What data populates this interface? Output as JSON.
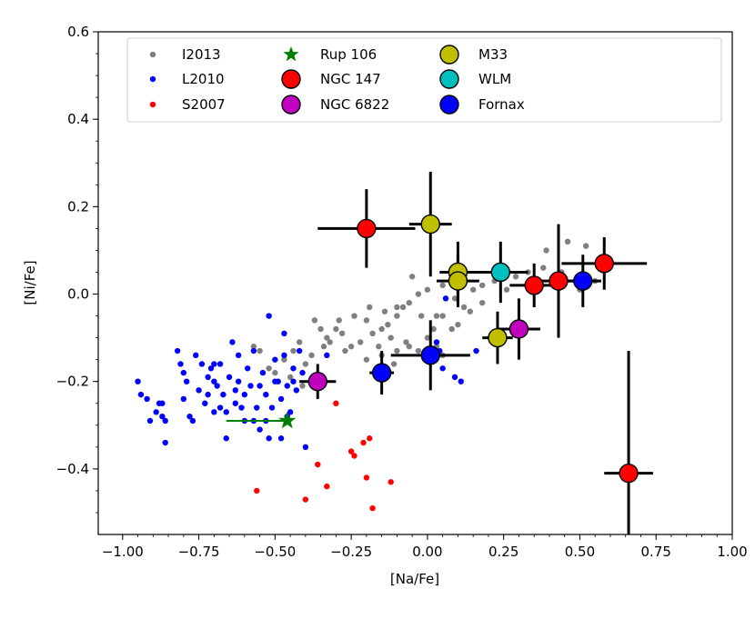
{
  "chart_data": {
    "type": "scatter",
    "title": "",
    "xlabel": "[Na/Fe]",
    "ylabel": "[Ni/Fe]",
    "xlim": [
      -1.08,
      1.0
    ],
    "ylim": [
      -0.55,
      0.6
    ],
    "xticks": [
      -1.0,
      -0.75,
      -0.5,
      -0.25,
      0.0,
      0.25,
      0.5,
      0.75,
      1.0
    ],
    "xtick_labels": [
      "−1.00",
      "−0.75",
      "−0.50",
      "−0.25",
      "0.00",
      "0.25",
      "0.50",
      "0.75",
      "1.00"
    ],
    "yticks": [
      -0.4,
      -0.2,
      0.0,
      0.2,
      0.4,
      0.6
    ],
    "ytick_labels": [
      "−0.4",
      "−0.2",
      "0.0",
      "0.2",
      "0.4",
      "0.6"
    ],
    "legend_position": "top",
    "legend": [
      {
        "label": "I2013",
        "marker": "dot",
        "color": "#808080"
      },
      {
        "label": "L2010",
        "marker": "dot",
        "color": "#0000ff"
      },
      {
        "label": "S2007",
        "marker": "dot",
        "color": "#ff0000"
      },
      {
        "label": "Rup 106",
        "marker": "star",
        "color": "#008000"
      },
      {
        "label": "NGC 147",
        "marker": "circle",
        "color": "#ff0000"
      },
      {
        "label": "NGC 6822",
        "marker": "circle",
        "color": "#bf00bf"
      },
      {
        "label": "M33",
        "marker": "circle",
        "color": "#bfbf00"
      },
      {
        "label": "WLM",
        "marker": "circle",
        "color": "#00bfbf"
      },
      {
        "label": "Fornax",
        "marker": "circle",
        "color": "#0000ff"
      }
    ],
    "series": [
      {
        "name": "I2013",
        "marker": "dot",
        "color": "#808080",
        "points": [
          [
            -0.2,
            -0.06
          ],
          [
            -0.15,
            -0.08
          ],
          [
            -0.1,
            -0.05
          ],
          [
            -0.05,
            0.04
          ],
          [
            -0.08,
            -0.03
          ],
          [
            -0.13,
            -0.07
          ],
          [
            -0.18,
            -0.09
          ],
          [
            -0.22,
            -0.11
          ],
          [
            -0.25,
            -0.12
          ],
          [
            -0.28,
            -0.09
          ],
          [
            -0.3,
            -0.08
          ],
          [
            -0.32,
            -0.11
          ],
          [
            -0.34,
            -0.12
          ],
          [
            -0.37,
            -0.06
          ],
          [
            -0.38,
            -0.14
          ],
          [
            -0.42,
            -0.11
          ],
          [
            -0.4,
            -0.16
          ],
          [
            -0.44,
            -0.13
          ],
          [
            -0.47,
            -0.15
          ],
          [
            -0.5,
            -0.18
          ],
          [
            -0.52,
            -0.17
          ],
          [
            -0.55,
            -0.13
          ],
          [
            -0.57,
            -0.12
          ],
          [
            -0.35,
            -0.08
          ],
          [
            -0.27,
            -0.13
          ],
          [
            -0.16,
            -0.12
          ],
          [
            -0.12,
            -0.1
          ],
          [
            -0.1,
            -0.13
          ],
          [
            -0.06,
            -0.12
          ],
          [
            -0.03,
            -0.13
          ],
          [
            0.0,
            -0.1
          ],
          [
            0.02,
            -0.08
          ],
          [
            0.05,
            -0.05
          ],
          [
            0.08,
            -0.08
          ],
          [
            0.12,
            -0.03
          ],
          [
            0.15,
            0.01
          ],
          [
            0.18,
            0.02
          ],
          [
            0.22,
            0.03
          ],
          [
            0.26,
            0.01
          ],
          [
            0.29,
            0.04
          ],
          [
            0.33,
            0.05
          ],
          [
            0.38,
            0.06
          ],
          [
            0.44,
            0.05
          ],
          [
            0.5,
            0.01
          ],
          [
            0.55,
            0.03
          ],
          [
            0.09,
            -0.01
          ],
          [
            0.05,
            0.02
          ],
          [
            0.0,
            0.01
          ],
          [
            -0.03,
            0.0
          ],
          [
            -0.06,
            -0.02
          ],
          [
            -0.1,
            -0.03
          ],
          [
            -0.14,
            -0.04
          ],
          [
            -0.19,
            -0.03
          ],
          [
            -0.24,
            -0.05
          ],
          [
            -0.29,
            -0.06
          ],
          [
            -0.33,
            -0.1
          ],
          [
            0.03,
            -0.05
          ],
          [
            0.1,
            -0.07
          ],
          [
            0.14,
            -0.04
          ],
          [
            0.18,
            -0.02
          ],
          [
            -0.02,
            -0.05
          ],
          [
            -0.07,
            -0.11
          ],
          [
            -0.11,
            -0.16
          ],
          [
            -0.15,
            -0.14
          ],
          [
            -0.2,
            -0.15
          ],
          [
            -0.37,
            -0.2
          ],
          [
            -0.41,
            -0.21
          ],
          [
            -0.45,
            -0.19
          ],
          [
            0.05,
            -0.14
          ],
          [
            0.03,
            -0.12
          ],
          [
            0.39,
            0.1
          ],
          [
            0.46,
            0.12
          ],
          [
            0.52,
            0.11
          ]
        ]
      },
      {
        "name": "L2010",
        "marker": "dot",
        "color": "#0000ff",
        "points": [
          [
            -0.95,
            -0.2
          ],
          [
            -0.94,
            -0.23
          ],
          [
            -0.92,
            -0.24
          ],
          [
            -0.91,
            -0.29
          ],
          [
            -0.89,
            -0.27
          ],
          [
            -0.88,
            -0.25
          ],
          [
            -0.87,
            -0.25
          ],
          [
            -0.87,
            -0.28
          ],
          [
            -0.86,
            -0.34
          ],
          [
            -0.86,
            -0.29
          ],
          [
            -0.82,
            -0.13
          ],
          [
            -0.81,
            -0.16
          ],
          [
            -0.8,
            -0.18
          ],
          [
            -0.79,
            -0.2
          ],
          [
            -0.78,
            -0.28
          ],
          [
            -0.77,
            -0.29
          ],
          [
            -0.76,
            -0.14
          ],
          [
            -0.75,
            -0.22
          ],
          [
            -0.74,
            -0.16
          ],
          [
            -0.73,
            -0.25
          ],
          [
            -0.72,
            -0.19
          ],
          [
            -0.72,
            -0.23
          ],
          [
            -0.71,
            -0.17
          ],
          [
            -0.7,
            -0.27
          ],
          [
            -0.7,
            -0.16
          ],
          [
            -0.69,
            -0.21
          ],
          [
            -0.68,
            -0.16
          ],
          [
            -0.68,
            -0.26
          ],
          [
            -0.67,
            -0.23
          ],
          [
            -0.66,
            -0.33
          ],
          [
            -0.65,
            -0.19
          ],
          [
            -0.64,
            -0.11
          ],
          [
            -0.63,
            -0.25
          ],
          [
            -0.62,
            -0.2
          ],
          [
            -0.62,
            -0.14
          ],
          [
            -0.6,
            -0.23
          ],
          [
            -0.6,
            -0.29
          ],
          [
            -0.59,
            -0.17
          ],
          [
            -0.58,
            -0.21
          ],
          [
            -0.57,
            -0.13
          ],
          [
            -0.56,
            -0.26
          ],
          [
            -0.55,
            -0.31
          ],
          [
            -0.55,
            -0.21
          ],
          [
            -0.54,
            -0.18
          ],
          [
            -0.53,
            -0.23
          ],
          [
            -0.52,
            -0.05
          ],
          [
            -0.52,
            -0.33
          ],
          [
            -0.51,
            -0.26
          ],
          [
            -0.5,
            -0.15
          ],
          [
            -0.49,
            -0.2
          ],
          [
            -0.48,
            -0.24
          ],
          [
            -0.47,
            -0.09
          ],
          [
            -0.47,
            -0.14
          ],
          [
            -0.46,
            -0.21
          ],
          [
            -0.45,
            -0.27
          ],
          [
            -0.44,
            -0.17
          ],
          [
            -0.43,
            -0.22
          ],
          [
            -0.42,
            -0.13
          ],
          [
            -0.41,
            -0.18
          ],
          [
            -0.4,
            -0.35
          ],
          [
            -0.48,
            -0.33
          ],
          [
            -0.33,
            -0.14
          ],
          [
            0.04,
            -0.13
          ],
          [
            0.05,
            -0.17
          ],
          [
            0.09,
            -0.19
          ],
          [
            0.16,
            -0.13
          ],
          [
            -0.66,
            -0.27
          ],
          [
            -0.61,
            -0.26
          ],
          [
            -0.57,
            -0.29
          ],
          [
            -0.53,
            -0.29
          ],
          [
            -0.44,
            -0.2
          ],
          [
            -0.46,
            -0.28
          ],
          [
            -0.5,
            -0.2
          ],
          [
            -0.7,
            -0.2
          ],
          [
            -0.63,
            -0.22
          ],
          [
            -0.8,
            -0.24
          ],
          [
            0.11,
            -0.2
          ],
          [
            0.03,
            -0.11
          ],
          [
            0.06,
            -0.01
          ]
        ]
      },
      {
        "name": "S2007",
        "marker": "dot",
        "color": "#ff0000",
        "points": [
          [
            -0.56,
            -0.45
          ],
          [
            -0.4,
            -0.47
          ],
          [
            -0.36,
            -0.39
          ],
          [
            -0.33,
            -0.44
          ],
          [
            -0.3,
            -0.25
          ],
          [
            -0.25,
            -0.36
          ],
          [
            -0.24,
            -0.37
          ],
          [
            -0.21,
            -0.34
          ],
          [
            -0.2,
            -0.42
          ],
          [
            -0.19,
            -0.33
          ],
          [
            -0.18,
            -0.49
          ],
          [
            -0.12,
            -0.43
          ]
        ]
      },
      {
        "name": "Rup 106",
        "marker": "star",
        "color": "#008000",
        "points": [
          {
            "x": -0.46,
            "y": -0.29,
            "xerr_low": 0.2,
            "xerr_high": 0.0,
            "yerr": 0.0
          }
        ]
      },
      {
        "name": "NGC 147",
        "marker": "circle",
        "color": "#ff0000",
        "points": [
          {
            "x": -0.2,
            "y": 0.15,
            "xerr": 0.16,
            "yerr": 0.09
          },
          {
            "x": 0.35,
            "y": 0.02,
            "xerr": 0.08,
            "yerr": 0.05
          },
          {
            "x": 0.43,
            "y": 0.03,
            "xerr": 0.08,
            "yerr": 0.13
          },
          {
            "x": 0.58,
            "y": 0.07,
            "xerr": 0.14,
            "yerr": 0.06
          },
          {
            "x": 0.66,
            "y": -0.41,
            "xerr": 0.08,
            "yerr": 0.28
          }
        ]
      },
      {
        "name": "NGC 6822",
        "marker": "circle",
        "color": "#bf00bf",
        "points": [
          {
            "x": -0.36,
            "y": -0.2,
            "xerr": 0.06,
            "yerr": 0.04
          },
          {
            "x": 0.3,
            "y": -0.08,
            "xerr": 0.07,
            "yerr": 0.07
          }
        ]
      },
      {
        "name": "M33",
        "marker": "circle",
        "color": "#bfbf00",
        "points": [
          {
            "x": 0.01,
            "y": 0.16,
            "xerr": 0.07,
            "yerr": 0.12
          },
          {
            "x": 0.1,
            "y": 0.05,
            "xerr": 0.06,
            "yerr": 0.07
          },
          {
            "x": 0.1,
            "y": 0.03,
            "xerr": 0.07,
            "yerr": 0.06
          },
          {
            "x": 0.23,
            "y": -0.1,
            "xerr": 0.05,
            "yerr": 0.06
          }
        ]
      },
      {
        "name": "WLM",
        "marker": "circle",
        "color": "#00bfbf",
        "points": [
          {
            "x": 0.24,
            "y": 0.05,
            "xerr": 0.09,
            "yerr": 0.07
          }
        ]
      },
      {
        "name": "Fornax",
        "marker": "circle",
        "color": "#0000ff",
        "points": [
          {
            "x": -0.15,
            "y": -0.18,
            "xerr": 0.04,
            "yerr": 0.05
          },
          {
            "x": 0.01,
            "y": -0.14,
            "xerr": 0.13,
            "yerr": 0.08
          },
          {
            "x": 0.51,
            "y": 0.03,
            "xerr": 0.06,
            "yerr": 0.06
          }
        ]
      }
    ]
  }
}
